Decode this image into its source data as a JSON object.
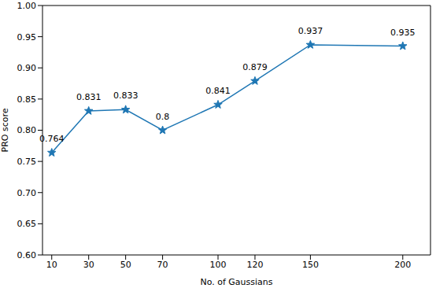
{
  "chart_data": {
    "type": "line",
    "x_label": "No. of Gaussians",
    "y_label": "PRO score",
    "x": [
      10,
      30,
      50,
      70,
      100,
      120,
      150,
      200
    ],
    "values": [
      0.764,
      0.831,
      0.833,
      0.8,
      0.841,
      0.879,
      0.937,
      0.935
    ],
    "color": "#1f77b4",
    "marker": "star",
    "line_style": "solid",
    "xlim": [
      5,
      215
    ],
    "xticks": [
      10,
      30,
      50,
      70,
      100,
      120,
      150,
      200
    ],
    "ylim": [
      0.6,
      1.0
    ],
    "yticks": [
      {
        "value": 0.6,
        "label": "0.60"
      },
      0.65,
      {
        "value": 0.7,
        "label": "0.70"
      },
      0.75,
      {
        "value": 0.8,
        "label": "0.80"
      },
      0.85,
      {
        "value": 0.9,
        "label": "0.90"
      },
      0.95,
      {
        "value": 1.0,
        "label": "1.00"
      }
    ],
    "grid": false,
    "data_labels": true
  }
}
